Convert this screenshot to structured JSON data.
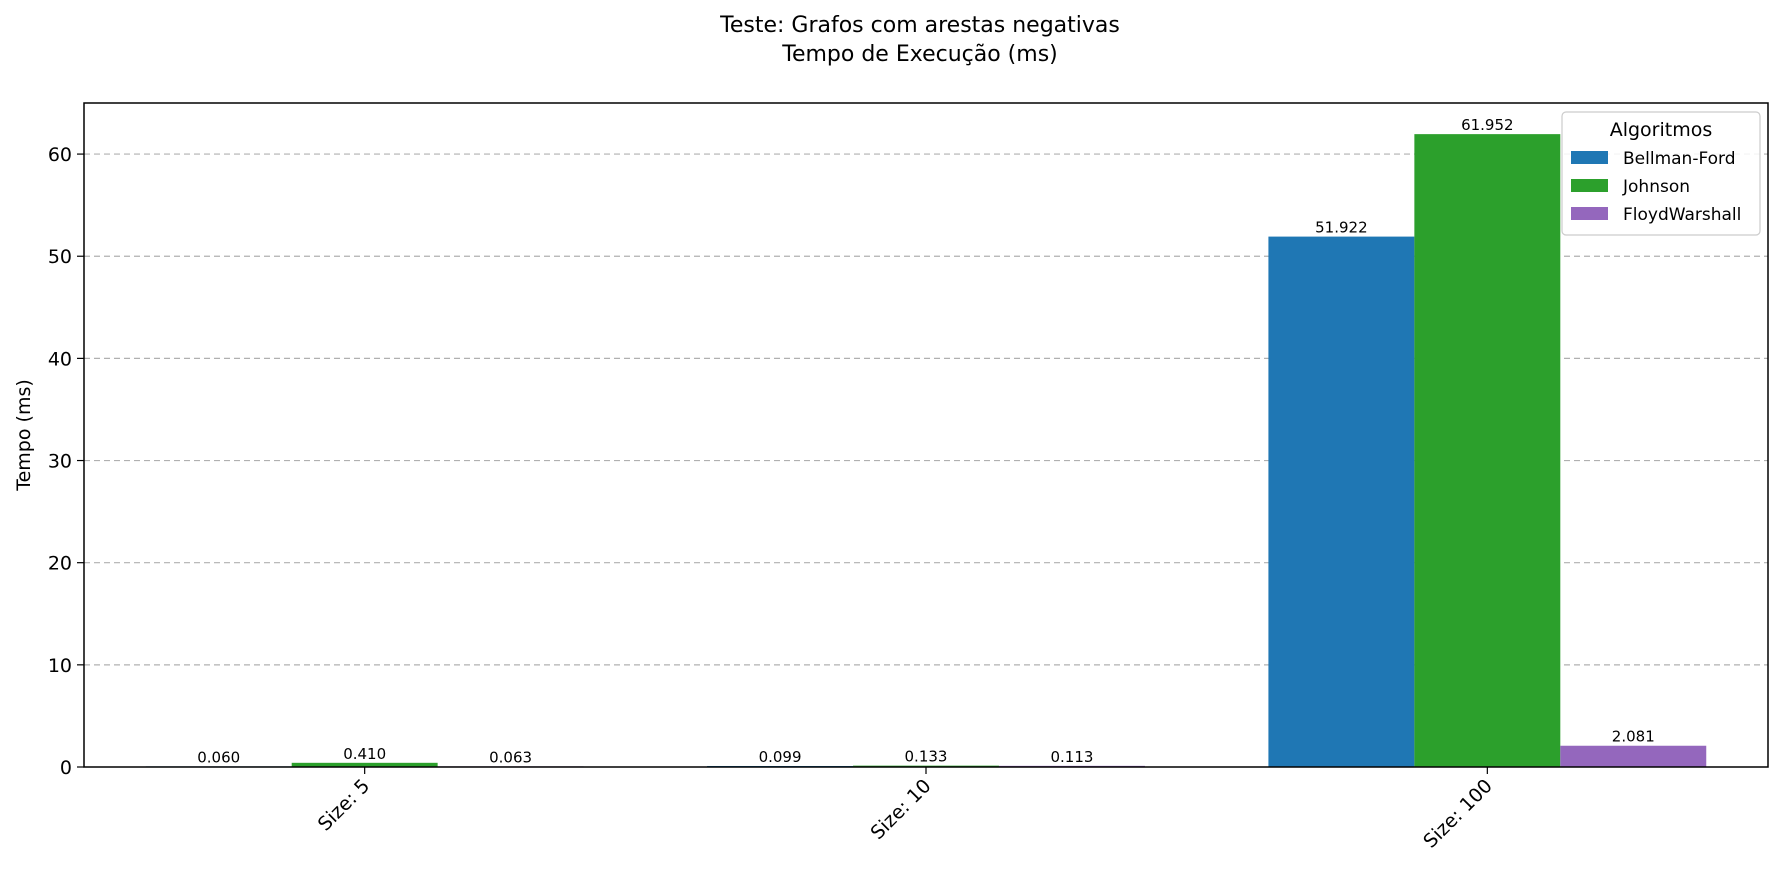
{
  "chart_data": {
    "type": "bar",
    "title_lines": [
      "Teste: Grafos com arestas negativas",
      "Tempo de Execução (ms)"
    ],
    "xlabel": "",
    "ylabel": "Tempo (ms)",
    "categories": [
      "Size: 5",
      "Size: 10",
      "Size: 100"
    ],
    "series": [
      {
        "name": "Bellman-Ford",
        "color": "#1f77b4",
        "values": [
          0.06,
          0.099,
          51.922
        ],
        "labels": [
          "0.060",
          "0.099",
          "51.922"
        ]
      },
      {
        "name": "Johnson",
        "color": "#2ca02c",
        "values": [
          0.41,
          0.133,
          61.952
        ],
        "labels": [
          "0.410",
          "0.133",
          "61.952"
        ]
      },
      {
        "name": "FloydWarshall",
        "color": "#9467bd",
        "values": [
          0.063,
          0.113,
          2.081
        ],
        "labels": [
          "0.063",
          "0.113",
          "2.081"
        ]
      }
    ],
    "ylim": [
      0,
      65
    ],
    "yticks": [
      0,
      10,
      20,
      30,
      40,
      50,
      60
    ],
    "grid": "y-dashed",
    "legend": {
      "title": "Algoritmos",
      "placement": "top-right"
    }
  }
}
